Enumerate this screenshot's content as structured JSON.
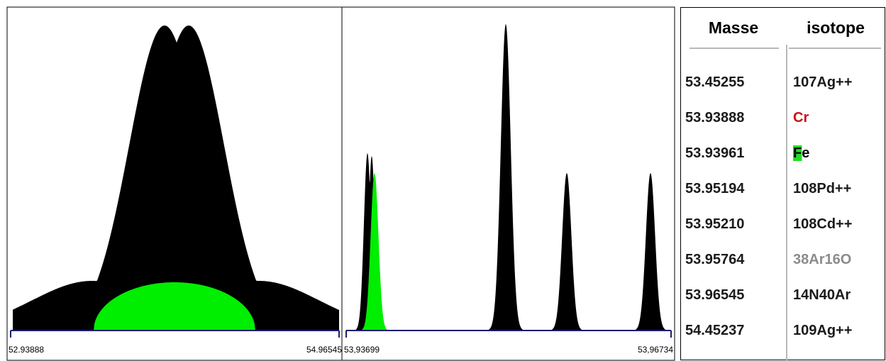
{
  "chart_data": [
    {
      "type": "area",
      "xlim_labels": [
        "52.93888",
        "54.96545"
      ],
      "series": [
        {
          "color": "#000000"
        },
        {
          "color": "#00ee00"
        }
      ]
    },
    {
      "type": "area",
      "xlim_labels": [
        "53,93699",
        "53,96734"
      ],
      "series": [
        {
          "color": "#000000"
        },
        {
          "color": "#00ee00"
        }
      ]
    }
  ],
  "table": {
    "headers": {
      "masse": "Masse",
      "isotope": "isotope"
    },
    "rows": [
      {
        "masse": "53.45255",
        "isotope": "107Ag++",
        "color": "#1a1a1a"
      },
      {
        "masse": "53.93888",
        "isotope": "Cr",
        "color": "#cc1111"
      },
      {
        "masse": "53.93961",
        "isotope": "Fe",
        "color": "#000000",
        "highlight": "#22dd22"
      },
      {
        "masse": "53.95194",
        "isotope": "108Pd++",
        "color": "#1a1a1a"
      },
      {
        "masse": "53.95210",
        "isotope": "108Cd++",
        "color": "#1a1a1a"
      },
      {
        "masse": "53.95764",
        "isotope": "38Ar16O",
        "color": "#8c8c8c"
      },
      {
        "masse": "53.96545",
        "isotope": "14N40Ar",
        "color": "#1a1a1a"
      },
      {
        "masse": "54.45237",
        "isotope": "109Ag++",
        "color": "#1a1a1a"
      }
    ]
  }
}
